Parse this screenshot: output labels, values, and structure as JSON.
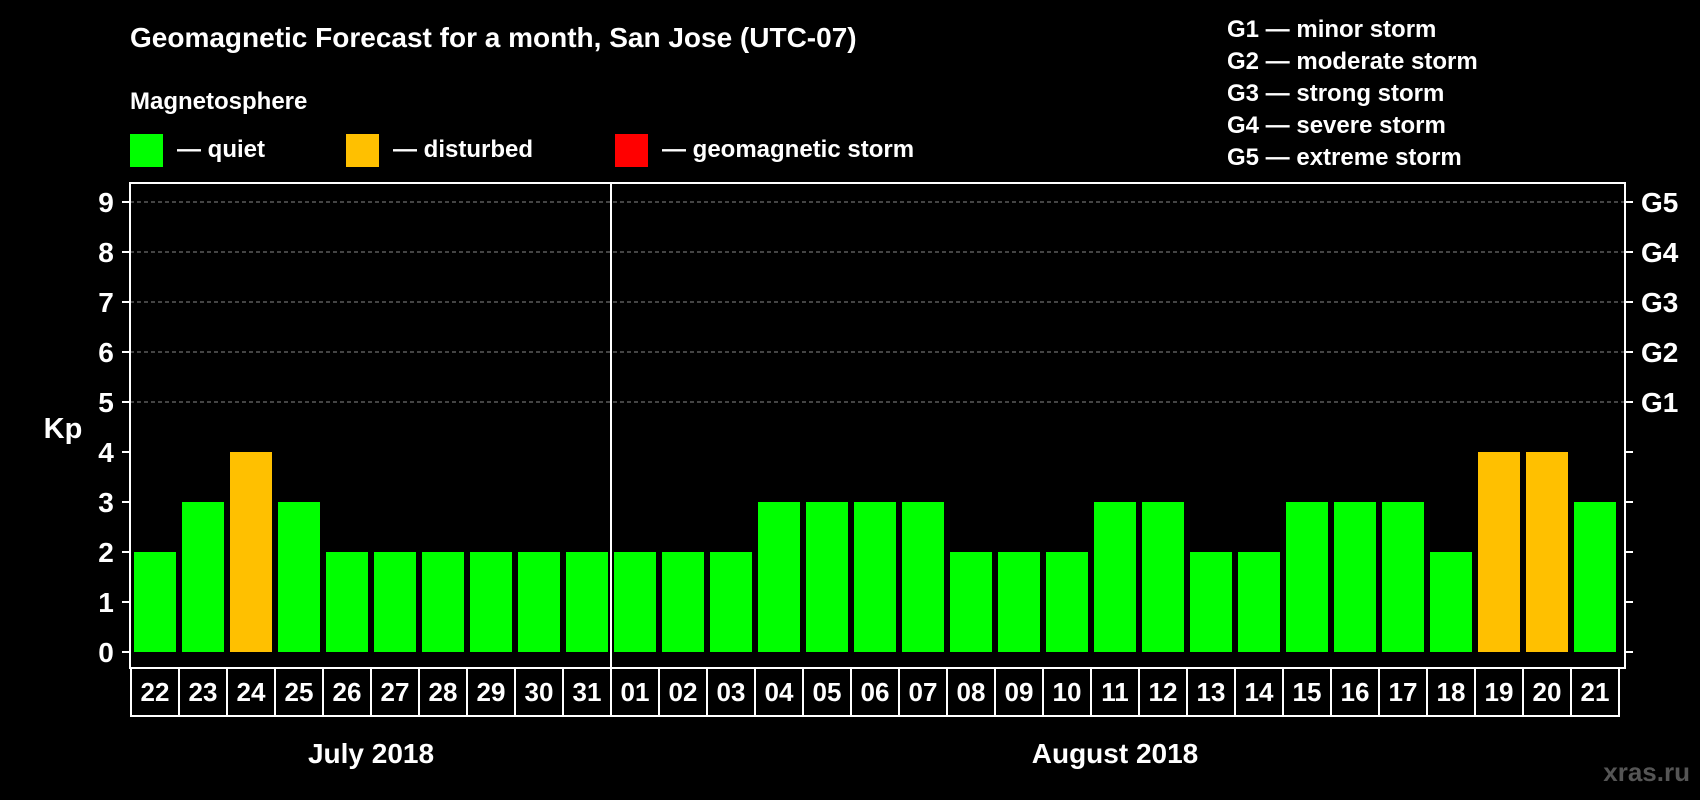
{
  "chart_data": {
    "type": "bar",
    "title": "Geomagnetic Forecast for a month, San Jose (UTC-07)",
    "legend": {
      "heading": "Magnetosphere",
      "placement": "top-left",
      "items": [
        {
          "label": "— quiet",
          "color": "#00ff00"
        },
        {
          "label": "— disturbed",
          "color": "#ffc000"
        },
        {
          "label": "— geomagnetic storm",
          "color": "#ff0000"
        }
      ]
    },
    "storm_scale": [
      "G1 — minor storm",
      "G2 — moderate storm",
      "G3 — strong storm",
      "G4 — severe storm",
      "G5 — extreme storm"
    ],
    "ylabel": "Kp",
    "ylim": [
      0,
      9
    ],
    "yticks": [
      "0",
      "1",
      "2",
      "3",
      "4",
      "5",
      "6",
      "7",
      "8",
      "9"
    ],
    "right_axis_labels": [
      {
        "kp": 5,
        "label": "G1"
      },
      {
        "kp": 6,
        "label": "G2"
      },
      {
        "kp": 7,
        "label": "G3"
      },
      {
        "kp": 8,
        "label": "G4"
      },
      {
        "kp": 9,
        "label": "G5"
      }
    ],
    "grid": "dashed horizontal at Kp 5-9",
    "categories": [
      "22",
      "23",
      "24",
      "25",
      "26",
      "27",
      "28",
      "29",
      "30",
      "31",
      "01",
      "02",
      "03",
      "04",
      "05",
      "06",
      "07",
      "08",
      "09",
      "10",
      "11",
      "12",
      "13",
      "14",
      "15",
      "16",
      "17",
      "18",
      "19",
      "20",
      "21"
    ],
    "values": [
      2,
      3,
      4,
      3,
      2,
      2,
      2,
      2,
      2,
      2,
      2,
      2,
      2,
      3,
      3,
      3,
      3,
      2,
      2,
      2,
      3,
      3,
      2,
      2,
      3,
      3,
      3,
      2,
      4,
      4,
      3
    ],
    "status": [
      "quiet",
      "quiet",
      "disturbed",
      "quiet",
      "quiet",
      "quiet",
      "quiet",
      "quiet",
      "quiet",
      "quiet",
      "quiet",
      "quiet",
      "quiet",
      "quiet",
      "quiet",
      "quiet",
      "quiet",
      "quiet",
      "quiet",
      "quiet",
      "quiet",
      "quiet",
      "quiet",
      "quiet",
      "quiet",
      "quiet",
      "quiet",
      "quiet",
      "disturbed",
      "disturbed",
      "quiet"
    ],
    "status_colors": {
      "quiet": "#00ff00",
      "disturbed": "#ffc000",
      "storm": "#ff0000"
    },
    "months": [
      {
        "label": "July 2018",
        "count": 10
      },
      {
        "label": "August 2018",
        "count": 21
      }
    ]
  },
  "watermark": "xras.ru"
}
